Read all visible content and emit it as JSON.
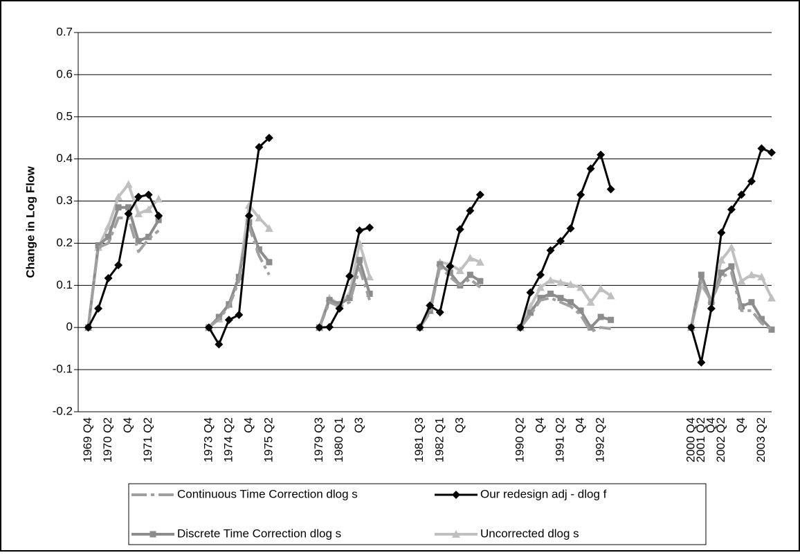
{
  "chart_data": {
    "type": "line",
    "y_label": "Change in Log Flow",
    "categories": [
      null,
      "1969 Q4",
      null,
      "1970 Q2",
      null,
      "Q4",
      null,
      "1971 Q2",
      null,
      null,
      null,
      null,
      null,
      "1973 Q4",
      null,
      "1974 Q2",
      null,
      "Q4",
      null,
      "1975 Q2",
      null,
      null,
      null,
      null,
      "1979 Q3",
      null,
      "1980 Q1",
      null,
      "Q3",
      null,
      null,
      null,
      null,
      null,
      "1981 Q3",
      null,
      "1982 Q1",
      null,
      "Q3",
      null,
      null,
      null,
      null,
      null,
      "1990 Q2",
      null,
      "Q4",
      null,
      "1991 Q2",
      null,
      "Q4",
      null,
      "1992 Q2",
      null,
      null,
      null,
      null,
      null,
      null,
      null,
      null,
      "2000 Q4",
      "2001 Q2",
      "Q4",
      "2002 Q2",
      null,
      "Q4",
      null,
      "2003 Q2",
      null
    ],
    "series": [
      {
        "name": "Continuous Time Correction dlog s",
        "color": "#a0a0a0",
        "line_style": "dashed",
        "marker": "none",
        "values": [
          null,
          0,
          0.19,
          0.2,
          0.26,
          0.26,
          0.18,
          0.21,
          0.23,
          null,
          null,
          null,
          null,
          0,
          0.02,
          0.05,
          0.11,
          0.24,
          0.17,
          0.125,
          null,
          null,
          null,
          null,
          0,
          0.06,
          0.05,
          0.06,
          0.14,
          0.065,
          null,
          null,
          null,
          null,
          0,
          0.035,
          0.145,
          0.12,
          0.1,
          0.115,
          0.095,
          null,
          null,
          null,
          0,
          0.03,
          0.065,
          0.07,
          0.06,
          0.05,
          0.03,
          -0.01,
          0,
          -0.003,
          null,
          null,
          null,
          null,
          null,
          null,
          null,
          0,
          0.11,
          0.06,
          0.12,
          0.13,
          0.04,
          0.04,
          0.01,
          -0.005
        ]
      },
      {
        "name": "Our redesign adj - dlog f",
        "color": "#000000",
        "line_style": "solid",
        "marker": "diamond",
        "values": [
          null,
          0,
          0.045,
          0.117,
          0.148,
          0.27,
          0.31,
          0.315,
          0.265,
          null,
          null,
          null,
          null,
          0,
          -0.04,
          0.018,
          0.03,
          0.265,
          0.428,
          0.45,
          null,
          null,
          null,
          null,
          0,
          0.001,
          0.045,
          0.122,
          0.23,
          0.237,
          null,
          null,
          null,
          null,
          0,
          0.052,
          0.036,
          0.145,
          0.233,
          0.277,
          0.315,
          null,
          null,
          null,
          0,
          0.083,
          0.125,
          0.183,
          0.205,
          0.235,
          0.315,
          0.377,
          0.41,
          0.328,
          null,
          null,
          null,
          null,
          null,
          null,
          null,
          0,
          -0.083,
          0.045,
          0.225,
          0.28,
          0.315,
          0.347,
          0.425,
          0.415
        ]
      },
      {
        "name": "Discrete Time Correction dlog s",
        "color": "#8c8c8c",
        "line_style": "solid",
        "marker": "square",
        "values": [
          null,
          0,
          0.195,
          0.215,
          0.285,
          0.285,
          0.205,
          0.215,
          0.255,
          null,
          null,
          null,
          null,
          0,
          0.025,
          0.055,
          0.12,
          0.25,
          0.185,
          0.155,
          null,
          null,
          null,
          null,
          0,
          0.065,
          0.055,
          0.07,
          0.16,
          0.08,
          null,
          null,
          null,
          null,
          0,
          0.04,
          0.15,
          0.13,
          0.1,
          0.125,
          0.11,
          null,
          null,
          null,
          0,
          0.035,
          0.07,
          0.08,
          0.07,
          0.06,
          0.04,
          0,
          0.025,
          0.018,
          null,
          null,
          null,
          null,
          null,
          null,
          null,
          0,
          0.125,
          0.06,
          0.13,
          0.145,
          0.05,
          0.06,
          0.02,
          -0.005
        ]
      },
      {
        "name": "Uncorrected dlog s",
        "color": "#c0c0c0",
        "line_style": "solid",
        "marker": "triangle",
        "values": [
          null,
          0,
          0.19,
          0.24,
          0.31,
          0.34,
          0.27,
          0.28,
          0.305,
          null,
          null,
          null,
          null,
          0,
          0.02,
          0.055,
          0.12,
          0.29,
          0.26,
          0.235,
          null,
          null,
          null,
          null,
          0,
          0.07,
          0.055,
          0.08,
          0.2,
          0.12,
          null,
          null,
          null,
          null,
          0,
          0.04,
          0.155,
          0.15,
          0.135,
          0.165,
          0.155,
          null,
          null,
          null,
          0,
          0.05,
          0.095,
          0.112,
          0.107,
          0.102,
          0.095,
          0.06,
          0.092,
          0.075,
          null,
          null,
          null,
          null,
          null,
          null,
          null,
          0,
          0.1,
          0.065,
          0.16,
          0.19,
          0.11,
          0.125,
          0.12,
          0.07
        ]
      }
    ],
    "ylim": [
      -0.2,
      0.7
    ],
    "yticks": [
      -0.2,
      -0.1,
      0,
      0.1,
      0.2,
      0.3,
      0.4,
      0.5,
      0.6,
      0.7
    ],
    "grid": true,
    "legend": "bottom"
  }
}
